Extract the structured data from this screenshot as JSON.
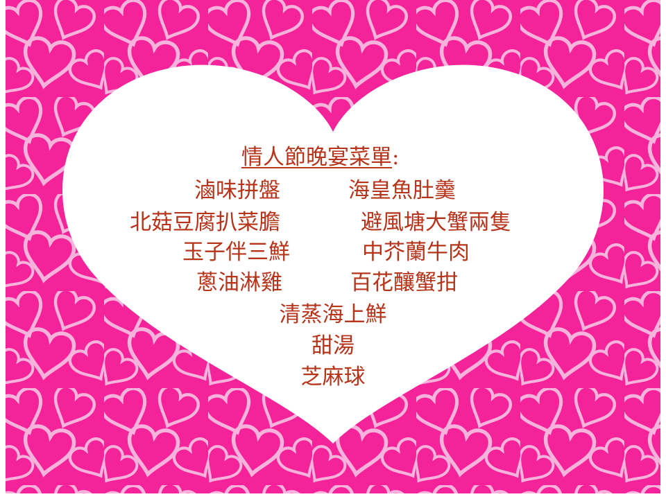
{
  "colors": {
    "background_pink": "#f4239a",
    "heart_outline_pink": "#f7b3dc",
    "main_heart_white": "#ffffff",
    "text_color": "#b5341a"
  },
  "menu": {
    "title": "情人節晚宴菜單",
    "title_colon": ":",
    "rows": [
      {
        "left": "滷味拼盤",
        "right": "海皇魚肚羹"
      },
      {
        "left": "北菇豆腐扒菜膽",
        "right": "避風塘大蟹兩隻"
      },
      {
        "left": "玉子伴三鮮",
        "right": "中芥蘭牛肉"
      },
      {
        "left": "蔥油淋雞",
        "right": "百花釀蟹拑"
      }
    ],
    "single_items": [
      "清蒸海上鮮",
      "甜湯",
      "芝麻球"
    ]
  }
}
